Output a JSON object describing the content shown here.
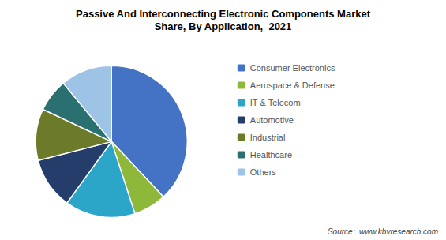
{
  "chart_data": {
    "type": "pie",
    "title": "Passive And Interconnecting Electronic Components Market",
    "subtitle": "Share, By Application,  2021",
    "categories": [
      "Consumer Electronics",
      "Aerospace & Defense",
      "IT & Telecom",
      "Automotive",
      "Industrial",
      "Healthcare",
      "Others"
    ],
    "values": [
      38,
      7,
      15,
      11,
      11,
      7,
      11
    ],
    "colors": [
      "#4472C4",
      "#8DB83A",
      "#2CA6C8",
      "#243D6B",
      "#6B7B2A",
      "#2A7070",
      "#9DC3E6"
    ],
    "annotations": [
      "Source:  www.kbvresearch.com"
    ],
    "legend": "right",
    "data_labels": false
  }
}
